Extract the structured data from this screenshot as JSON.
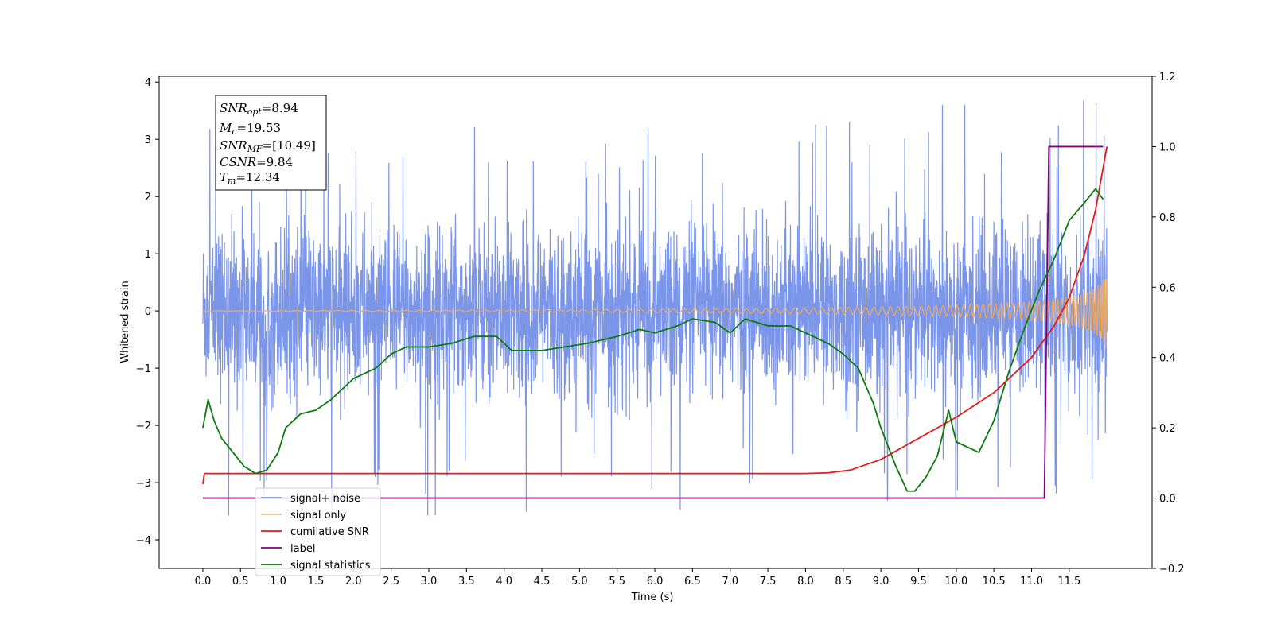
{
  "chart_data": {
    "type": "line",
    "xlabel": "Time (s)",
    "ylabel_left": "Whitened strain",
    "ylabel_right": "",
    "xlim": [
      -0.58,
      12.6
    ],
    "ylim_left": [
      -4.5,
      4.1
    ],
    "ylim_right": [
      -0.2,
      1.2
    ],
    "x_ticks": [
      "0.0",
      "0.5",
      "1.0",
      "1.5",
      "2.0",
      "2.5",
      "3.0",
      "3.5",
      "4.0",
      "4.5",
      "5.0",
      "5.5",
      "6.0",
      "6.5",
      "7.0",
      "7.5",
      "8.0",
      "8.5",
      "9.0",
      "9.5",
      "10.0",
      "10.5",
      "11.0",
      "11.5"
    ],
    "y_ticks_left": [
      "4",
      "3",
      "2",
      "1",
      "0",
      "−1",
      "−2",
      "−3",
      "−4"
    ],
    "y_ticks_right": [
      "1.2",
      "1.0",
      "0.8",
      "0.6",
      "0.4",
      "0.2",
      "0.0",
      "−0.2"
    ],
    "grid": false,
    "legend_placement": "lower-left",
    "annotation": {
      "snr_opt": {
        "sym": "SNR",
        "sub": "opt",
        "rest": "=8.94"
      },
      "mc": {
        "sym": "M",
        "sub": "c",
        "rest": "=19.53"
      },
      "snr_mf": {
        "sym": "SNR",
        "sub": "MF",
        "rest": "=[10.49]"
      },
      "csnr": {
        "sym": "CSNR",
        "sub": "",
        "rest": "=9.84"
      },
      "tm": {
        "sym": "T",
        "sub": "m",
        "rest": "=12.34"
      }
    },
    "series": [
      {
        "name": "signal+ noise",
        "axis": "left",
        "color": "#7b95e8",
        "description_values": {
          "x_start": 0.0,
          "x_end": 12.0,
          "typical_range": [
            -2.0,
            2.0
          ],
          "extreme_max": 3.7,
          "extreme_min": -4.1
        }
      },
      {
        "name": "signal only",
        "axis": "left",
        "color": "#e5a86a",
        "description_values": {
          "x_start": 0.0,
          "x_end": 12.0,
          "amplitude_start": 0.0,
          "amplitude_end": 0.72
        }
      },
      {
        "name": "cumilative SNR",
        "axis": "right",
        "color": "#e41a1c",
        "x": [
          0.0,
          0.02,
          1.0,
          4.0,
          7.0,
          8.0,
          8.3,
          8.6,
          9.0,
          9.5,
          10.0,
          10.5,
          11.0,
          11.3,
          11.5,
          11.7,
          11.85,
          11.95,
          12.0
        ],
        "values": [
          0.04,
          0.07,
          0.07,
          0.07,
          0.07,
          0.07,
          0.072,
          0.08,
          0.11,
          0.17,
          0.23,
          0.3,
          0.4,
          0.49,
          0.57,
          0.69,
          0.82,
          0.94,
          1.0
        ]
      },
      {
        "name": "label",
        "axis": "right",
        "color": "#800080",
        "x": [
          0.0,
          11.17,
          11.23,
          11.95
        ],
        "values": [
          0.0,
          0.0,
          1.0,
          1.0
        ]
      },
      {
        "name": "signal statistics",
        "axis": "right",
        "color": "#0c7a0c",
        "x": [
          0.0,
          0.07,
          0.15,
          0.25,
          0.4,
          0.55,
          0.7,
          0.85,
          1.0,
          1.1,
          1.3,
          1.5,
          1.7,
          2.0,
          2.3,
          2.5,
          2.7,
          3.0,
          3.3,
          3.6,
          3.9,
          4.1,
          4.3,
          4.5,
          4.8,
          5.1,
          5.5,
          5.8,
          6.0,
          6.3,
          6.5,
          6.8,
          7.0,
          7.2,
          7.5,
          7.8,
          8.0,
          8.3,
          8.5,
          8.7,
          8.9,
          9.0,
          9.2,
          9.35,
          9.45,
          9.6,
          9.75,
          9.9,
          10.0,
          10.1,
          10.3,
          10.5,
          10.7,
          10.9,
          11.1,
          11.3,
          11.5,
          11.7,
          11.85,
          11.95
        ],
        "values": [
          0.2,
          0.28,
          0.22,
          0.17,
          0.13,
          0.09,
          0.07,
          0.08,
          0.13,
          0.2,
          0.24,
          0.25,
          0.28,
          0.34,
          0.37,
          0.41,
          0.43,
          0.43,
          0.44,
          0.46,
          0.46,
          0.42,
          0.42,
          0.42,
          0.43,
          0.44,
          0.46,
          0.48,
          0.47,
          0.49,
          0.51,
          0.5,
          0.47,
          0.51,
          0.49,
          0.49,
          0.47,
          0.44,
          0.41,
          0.37,
          0.27,
          0.2,
          0.09,
          0.02,
          0.02,
          0.06,
          0.12,
          0.25,
          0.16,
          0.15,
          0.13,
          0.22,
          0.36,
          0.48,
          0.59,
          0.68,
          0.79,
          0.84,
          0.88,
          0.85
        ]
      }
    ]
  }
}
